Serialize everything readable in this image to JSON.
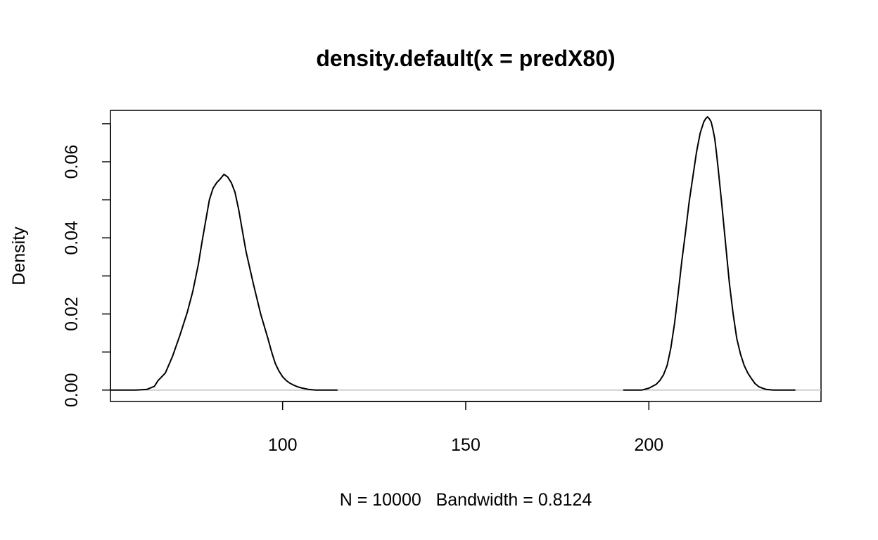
{
  "chart_data": {
    "type": "line",
    "title": "density.default(x = predX80)",
    "xlabel": "N = 10000   Bandwidth = 0.8124",
    "ylabel": "Density",
    "xlim": [
      53,
      247
    ],
    "ylim": [
      -0.003,
      0.0735
    ],
    "x_ticks": [
      100,
      150,
      200
    ],
    "x_tick_labels": [
      "100",
      "150",
      "200"
    ],
    "y_ticks": [
      0,
      0.01,
      0.02,
      0.03,
      0.04,
      0.05,
      0.06,
      0.07
    ],
    "y_tick_labels": [
      {
        "value": 0,
        "label": "0.00"
      },
      {
        "value": 0.02,
        "label": "0.02"
      },
      {
        "value": 0.04,
        "label": "0.04"
      },
      {
        "value": 0.06,
        "label": "0.06"
      }
    ],
    "baseline": {
      "y": 0,
      "color": "#bebebe"
    },
    "grid": false,
    "line_color": "#000000",
    "series": [
      {
        "x": [
          53.0,
          60.0,
          63.0,
          65.0,
          66.0,
          68.0,
          70.0,
          72.0,
          74.0,
          75.5,
          77.0,
          78.0,
          79.0,
          80.0,
          81.0,
          82.0,
          83.0,
          84.0,
          85.0,
          86.0,
          87.0,
          88.0,
          89.0,
          90.0,
          92.0,
          94.0,
          96.0,
          97.0,
          98.0,
          99.0,
          100.0,
          101.0,
          102.0,
          103.0,
          104.0,
          105.0,
          106.0,
          107.0,
          108.0,
          109.0,
          111.0,
          115.0
        ],
        "y": [
          0.0,
          0.0,
          0.0002,
          0.001,
          0.0025,
          0.0045,
          0.009,
          0.0145,
          0.0205,
          0.026,
          0.033,
          0.039,
          0.0445,
          0.05,
          0.053,
          0.0545,
          0.0555,
          0.0567,
          0.056,
          0.0545,
          0.052,
          0.0475,
          0.042,
          0.0365,
          0.028,
          0.02,
          0.0135,
          0.01,
          0.007,
          0.005,
          0.0035,
          0.0025,
          0.0018,
          0.0013,
          0.0009,
          0.0006,
          0.0004,
          0.0002,
          0.0001,
          0.0,
          0.0,
          0.0
        ]
      },
      {
        "x": [
          193.0,
          198.0,
          200.0,
          202.0,
          203.0,
          204.0,
          205.0,
          206.0,
          207.0,
          208.0,
          209.0,
          210.0,
          211.0,
          212.0,
          213.0,
          214.0,
          215.0,
          215.5,
          216.0,
          216.5,
          217.0,
          217.5,
          218.0,
          218.5,
          219.0,
          220.0,
          221.0,
          222.0,
          223.0,
          224.0,
          225.0,
          226.0,
          227.0,
          228.0,
          229.0,
          230.0,
          231.0,
          232.0,
          233.0,
          234.0,
          236.0,
          240.0
        ],
        "y": [
          0.0,
          0.0,
          0.0005,
          0.0015,
          0.0025,
          0.004,
          0.0065,
          0.011,
          0.0175,
          0.0255,
          0.034,
          0.0415,
          0.0495,
          0.056,
          0.0625,
          0.0675,
          0.0705,
          0.0713,
          0.0718,
          0.0713,
          0.0705,
          0.0685,
          0.066,
          0.062,
          0.0575,
          0.048,
          0.038,
          0.028,
          0.02,
          0.0135,
          0.0095,
          0.0065,
          0.0045,
          0.003,
          0.0017,
          0.0009,
          0.0005,
          0.0002,
          0.0001,
          0.0,
          0.0,
          0.0
        ]
      }
    ]
  }
}
